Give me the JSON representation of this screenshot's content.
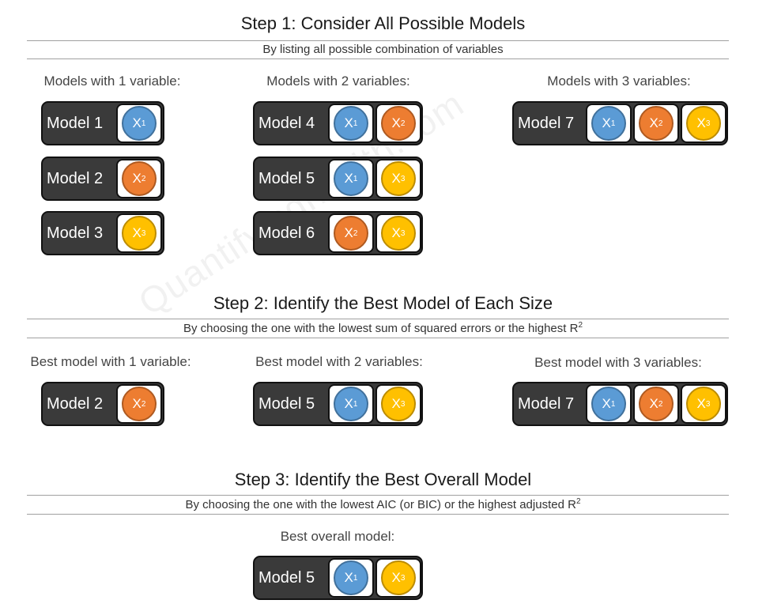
{
  "colors": {
    "X1": "#5b9bd5",
    "X2": "#ed7d31",
    "X3": "#ffc000",
    "X1_border": "#41719c",
    "X2_border": "#ae5a21",
    "X3_border": "#bc8c00"
  },
  "watermark": "Quantifyinghealth.com",
  "step1": {
    "title": "Step 1: Consider All Possible Models",
    "subtitle": "By listing all possible combination of variables",
    "groups": [
      {
        "label": "Models with 1 variable:",
        "models": [
          {
            "name": "Model 1",
            "vars": [
              "X1"
            ]
          },
          {
            "name": "Model 2",
            "vars": [
              "X2"
            ]
          },
          {
            "name": "Model 3",
            "vars": [
              "X3"
            ]
          }
        ]
      },
      {
        "label": "Models with 2 variables:",
        "models": [
          {
            "name": "Model 4",
            "vars": [
              "X1",
              "X2"
            ]
          },
          {
            "name": "Model 5",
            "vars": [
              "X1",
              "X3"
            ]
          },
          {
            "name": "Model 6",
            "vars": [
              "X2",
              "X3"
            ]
          }
        ]
      },
      {
        "label": "Models with 3 variables:",
        "models": [
          {
            "name": "Model 7",
            "vars": [
              "X1",
              "X2",
              "X3"
            ]
          }
        ]
      }
    ]
  },
  "step2": {
    "title": "Step 2: Identify the Best Model of Each Size",
    "subtitle": "By choosing the one with the lowest sum of squared errors or the highest R",
    "subtitle_sup": "2",
    "groups": [
      {
        "label": "Best model with 1 variable:",
        "models": [
          {
            "name": "Model 2",
            "vars": [
              "X2"
            ]
          }
        ]
      },
      {
        "label": "Best model with 2 variables:",
        "models": [
          {
            "name": "Model 5",
            "vars": [
              "X1",
              "X3"
            ]
          }
        ]
      },
      {
        "label": "Best model with 3 variables:",
        "models": [
          {
            "name": "Model 7",
            "vars": [
              "X1",
              "X2",
              "X3"
            ]
          }
        ]
      }
    ]
  },
  "step3": {
    "title": "Step 3: Identify the Best Overall Model",
    "subtitle": "By choosing the one with the lowest AIC (or BIC) or the highest adjusted R",
    "subtitle_sup": "2",
    "groups": [
      {
        "label": "Best overall model:",
        "models": [
          {
            "name": "Model 5",
            "vars": [
              "X1",
              "X3"
            ]
          }
        ]
      }
    ]
  }
}
